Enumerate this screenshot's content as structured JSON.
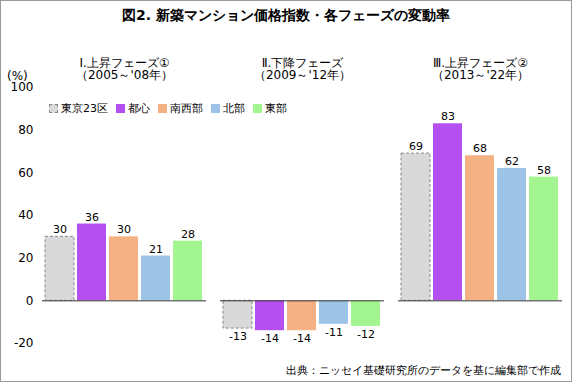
{
  "chart_data": {
    "type": "bar",
    "title": "図2. 新築マンション価格指数・各フェーズの変動率",
    "ylabel": "(%)",
    "source": "出典：ニッセイ基礎研究所のデータを基に編集部で作成",
    "categories": [
      "Ⅰ.上昇フェーズ①\n（2005～'08年）",
      "Ⅱ.下降フェーズ\n（2009～'12年）",
      "Ⅲ.上昇フェーズ②\n（2013～'22年）"
    ],
    "series": [
      {
        "name": "東京23区",
        "color": "#d9d9d9",
        "values": [
          30,
          -13,
          69
        ]
      },
      {
        "name": "都心",
        "color": "#b44ff0",
        "values": [
          36,
          -14,
          83
        ]
      },
      {
        "name": "南西部",
        "color": "#f4b183",
        "values": [
          30,
          -14,
          68
        ]
      },
      {
        "name": "北部",
        "color": "#9dc3e6",
        "values": [
          21,
          -11,
          62
        ]
      },
      {
        "name": "東部",
        "color": "#a3f592",
        "values": [
          28,
          -12,
          58
        ]
      }
    ],
    "ylim": [
      -20,
      100
    ],
    "yticks": [
      -20,
      0,
      20,
      40,
      60,
      80,
      100
    ],
    "data_labels": true,
    "legend": "top-left"
  }
}
